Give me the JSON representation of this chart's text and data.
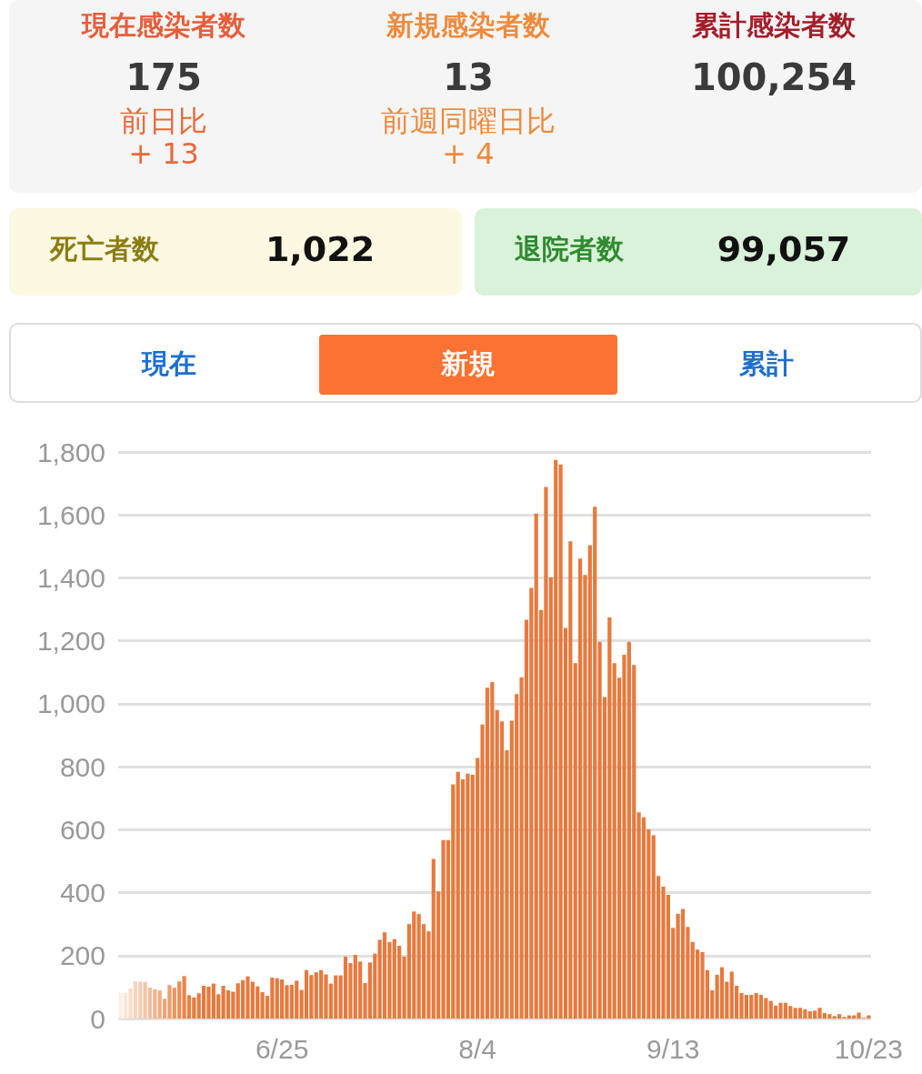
{
  "chart_data": [
    {
      "type": "other",
      "annotations": [
        "現在感染者数",
        "175",
        "前日比",
        "+ 13",
        "新規感染者数",
        "13",
        "前週同曜日比",
        "+ 4",
        "累計感染者数",
        "100,254",
        "死亡者数",
        "1,022",
        "退院者数",
        "99,057",
        "現在",
        "新規",
        "累計"
      ]
    },
    {
      "type": "bar",
      "ylim": [
        0,
        1800
      ],
      "yticks": [
        0,
        200,
        400,
        600,
        800,
        {
          "value": 1000,
          "label": "1,000"
        },
        {
          "value": 1200,
          "label": "1,200"
        },
        {
          "value": 1400,
          "label": "1,400"
        },
        {
          "value": 1600,
          "label": "1,600"
        },
        {
          "value": 1800,
          "label": "1,800"
        }
      ],
      "grid": "y",
      "categories": [
        null,
        null,
        null,
        null,
        null,
        null,
        null,
        null,
        null,
        null,
        null,
        null,
        null,
        null,
        null,
        null,
        null,
        null,
        null,
        null,
        null,
        null,
        null,
        null,
        null,
        null,
        null,
        null,
        null,
        null,
        null,
        null,
        null,
        "6/25",
        null,
        null,
        null,
        null,
        null,
        null,
        null,
        null,
        null,
        null,
        null,
        null,
        null,
        null,
        null,
        null,
        null,
        null,
        null,
        null,
        null,
        null,
        null,
        null,
        null,
        null,
        null,
        null,
        null,
        null,
        null,
        null,
        null,
        null,
        null,
        null,
        null,
        null,
        null,
        "8/4",
        null,
        null,
        null,
        null,
        null,
        null,
        null,
        null,
        null,
        null,
        null,
        null,
        null,
        null,
        null,
        null,
        null,
        null,
        null,
        null,
        null,
        null,
        null,
        null,
        null,
        null,
        null,
        null,
        null,
        null,
        null,
        null,
        null,
        null,
        null,
        null,
        null,
        null,
        null,
        "9/13",
        null,
        null,
        null,
        null,
        null,
        null,
        null,
        null,
        null,
        null,
        null,
        null,
        null,
        null,
        null,
        null,
        null,
        null,
        null,
        null,
        null,
        null,
        null,
        null,
        null,
        null,
        null,
        null,
        null,
        null,
        null,
        null,
        null,
        null,
        null,
        null,
        null,
        null,
        null,
        "10/23"
      ],
      "values": [
        82,
        82,
        96,
        119,
        117,
        116,
        98,
        93,
        89,
        63,
        106,
        98,
        118,
        135,
        74,
        67,
        80,
        104,
        101,
        111,
        77,
        104,
        90,
        85,
        112,
        122,
        134,
        117,
        102,
        84,
        72,
        130,
        128,
        124,
        106,
        107,
        120,
        91,
        154,
        138,
        147,
        154,
        140,
        111,
        137,
        137,
        197,
        176,
        202,
        181,
        113,
        178,
        206,
        250,
        274,
        243,
        252,
        231,
        197,
        300,
        340,
        332,
        300,
        277,
        507,
        404,
        567,
        567,
        744,
        784,
        760,
        778,
        774,
        828,
        934,
        1051,
        1069,
        980,
        944,
        852,
        946,
        1031,
        1084,
        1267,
        1368,
        1604,
        1298,
        1689,
        1401,
        1775,
        1760,
        1241,
        1516,
        1129,
        1461,
        1409,
        1504,
        1626,
        1197,
        1021,
        1274,
        1129,
        1083,
        1156,
        1197,
        1123,
        655,
        639,
        601,
        582,
        453,
        419,
        393,
        288,
        333,
        348,
        291,
        243,
        219,
        211,
        154,
        90,
        139,
        163,
        117,
        149,
        104,
        81,
        75,
        75,
        81,
        75,
        65,
        56,
        41,
        50,
        50,
        40,
        34,
        34,
        29,
        23,
        25,
        34,
        17,
        14,
        8,
        14,
        5,
        10,
        10,
        19,
        2,
        10
      ],
      "colors": [
        "#fcece3",
        "#fbe4d7",
        "#f9dccb",
        "#f8d4bf",
        "#f7ccb3",
        "#f5c4a7",
        "#f4bc9b",
        "#f3b48f",
        "#f1ac83",
        "#f0a477",
        "#ef9c6b",
        "#ed945f",
        "#ec8c53",
        "#eb8447",
        "#e97e41",
        "#e8793d",
        "#e8793d",
        "#e8793d",
        "#e8793d",
        "#e8793d",
        "#e8793d",
        "#e8793d",
        "#e8793d",
        "#e8793d",
        "#e8793d",
        "#e8793d",
        "#e8793d",
        "#e8793d",
        "#e8793d",
        "#e8793d",
        "#e8793d",
        "#e8793d",
        "#e8793d",
        "#e8793d",
        "#e8793d",
        "#e8793d",
        "#e8793d",
        "#e8793d",
        "#e8793d",
        "#e8793d",
        "#e8793d",
        "#e8793d",
        "#e8793d",
        "#e8793d",
        "#e8793d",
        "#e8793d",
        "#e8793d",
        "#e8793d",
        "#e8793d",
        "#e8793d",
        "#e8793d",
        "#e8793d",
        "#e8793d",
        "#e8793d",
        "#e8793d",
        "#e8793d",
        "#e8793d",
        "#e8793d",
        "#e8793d",
        "#e8793d",
        "#e8793d",
        "#e8793d",
        "#e8793d",
        "#e8793d",
        "#e8793d",
        "#e8793d",
        "#e8793d",
        "#e8793d",
        "#e8793d",
        "#e8793d",
        "#e8793d",
        "#e8793d",
        "#e8793d",
        "#e8793d",
        "#e8793d",
        "#e8793d",
        "#e8793d",
        "#e8793d",
        "#e8793d",
        "#e8793d",
        "#e8793d",
        "#e8793d",
        "#e8793d",
        "#e8793d",
        "#e8793d",
        "#e8793d",
        "#e8793d",
        "#e8793d",
        "#e8793d",
        "#e8793d",
        "#e8793d",
        "#e8793d",
        "#e8793d",
        "#e8793d",
        "#e8793d",
        "#e8793d",
        "#e8793d",
        "#e8793d",
        "#e8793d",
        "#e8793d",
        "#e8793d",
        "#e8793d",
        "#e8793d",
        "#e8793d",
        "#e8793d",
        "#e8793d",
        "#e8793d",
        "#e8793d",
        "#e8793d",
        "#e8793d",
        "#e8793d",
        "#e8793d",
        "#e8793d",
        "#e8793d",
        "#e8793d",
        "#e8793d",
        "#e8793d",
        "#e8793d",
        "#e8793d",
        "#e8793d",
        "#e8793d",
        "#e8793d",
        "#e8793d",
        "#e8793d",
        "#e8793d",
        "#e8793d",
        "#e8793d",
        "#e8793d",
        "#e8793d",
        "#e8793d",
        "#e8793d",
        "#e8793d",
        "#e8793d",
        "#e8793d",
        "#e8793d",
        "#e8793d",
        "#e8793d",
        "#e8793d",
        "#e8793d",
        "#e8793d",
        "#e8793d",
        "#e8793d",
        "#e8793d",
        "#e8793d",
        "#e8793d",
        "#e8793d",
        "#e8793d",
        "#e8793d",
        "#e8793d",
        "#e8793d",
        "#e8793d",
        "#e8793d",
        "#e8793d",
        "#e8793d"
      ]
    }
  ]
}
